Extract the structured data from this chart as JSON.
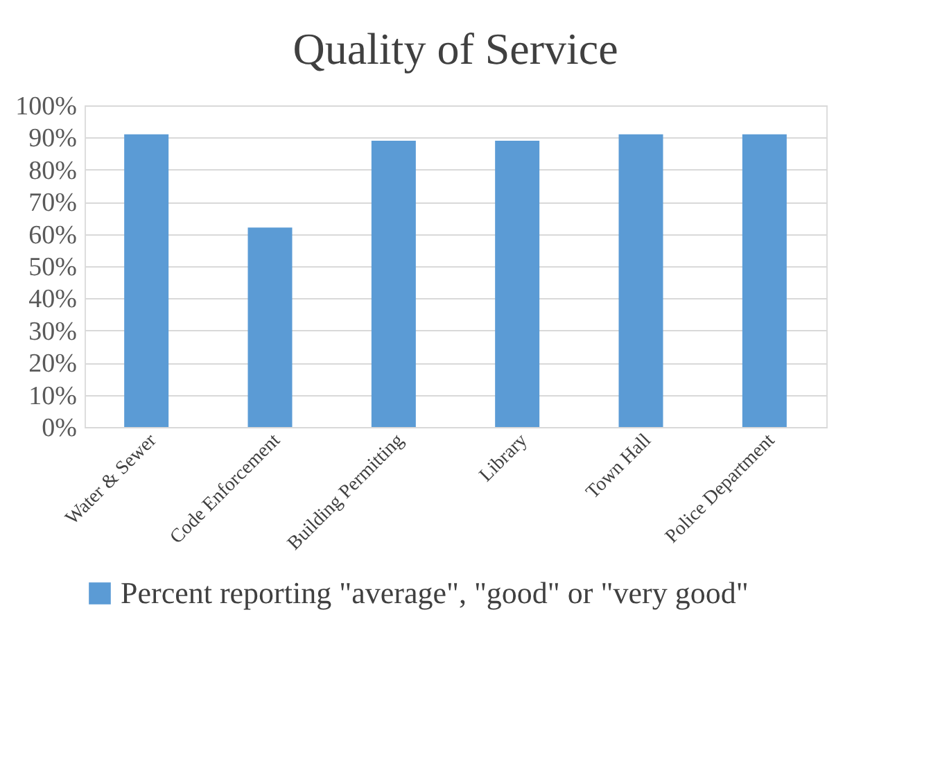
{
  "chart_data": {
    "type": "bar",
    "title": "Quality of Service",
    "categories": [
      "Water & Sewer",
      "Code Enforcement",
      "Building Permitting",
      "Library",
      "Town Hall",
      "Police Department"
    ],
    "series": [
      {
        "name": "Percent reporting \"average\", \"good\" or \"very good\"",
        "color": "#5b9bd5",
        "values": [
          91,
          62,
          89,
          89,
          91,
          91
        ]
      }
    ],
    "ylim": [
      0,
      100
    ],
    "yticks": [
      {
        "value": 0,
        "label": "0%"
      },
      {
        "value": 10,
        "label": "10%"
      },
      {
        "value": 20,
        "label": "20%"
      },
      {
        "value": 30,
        "label": "30%"
      },
      {
        "value": 40,
        "label": "40%"
      },
      {
        "value": 50,
        "label": "50%"
      },
      {
        "value": 60,
        "label": "60%"
      },
      {
        "value": 70,
        "label": "70%"
      },
      {
        "value": 80,
        "label": "80%"
      },
      {
        "value": 90,
        "label": "90%"
      },
      {
        "value": 100,
        "label": "100%"
      }
    ],
    "grid": "y",
    "legend": "bottom"
  }
}
